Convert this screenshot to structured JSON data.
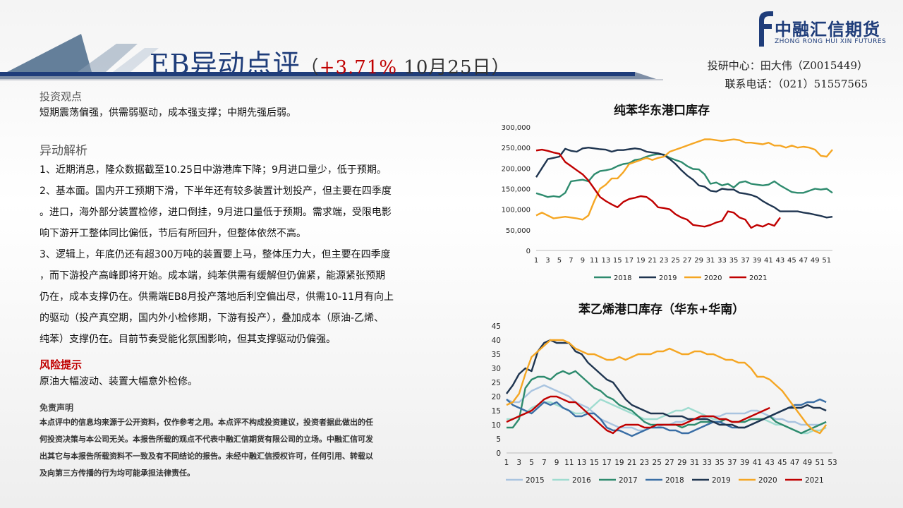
{
  "header": {
    "title_main": "EB异动点评",
    "title_open": "（",
    "title_pct": "+3.71%",
    "title_date": " 10月25日）",
    "logo_cn": "中融汇信期货",
    "logo_en": "ZHONG RONG HUI XIN FUTURES",
    "researcher": "投研中心：田大伟（Z0015449）",
    "phone": "联系电话：（021）51557565",
    "brand_color": "#1f3d7a",
    "accent_color": "#c00000"
  },
  "content": {
    "view_title": "投资观点",
    "view_text": "短期震荡偏强，供需弱驱动，成本强支撑；中期先强后弱。",
    "analysis_title": "异动解析",
    "analysis_lines": [
      "1、近期消息，隆众数据截至10.25日中游港库下降；9月进口量少，低于预期。",
      "2、基本面。国内开工预期下滑，下半年还有较多装置计划投产，但主要在四季度",
      "。进口，海外部分装置检修，进口倒挂，9月进口量低于预期。需求端，受限电影",
      "响下游开工整体同比偏低，节后有所回升，但整体依然不高。",
      "3、逻辑上，年底仍还有超300万吨的装置要上马，整体压力大，但主要在四季度",
      "，而下游投产高峰即将开始。成本端，纯苯供需有缓解但仍偏紧，能源紧张预期",
      "仍在，成本支撑仍在。供需端EB8月投产落地后利空偏出尽，供需10-11月有向上",
      "的驱动（投产真空期，国内外小检修期，下游有投产），叠加成本（原油-乙烯、",
      "纯苯）支撑仍在。目前节奏受能化氛围影响，但其支撑驱动仍偏强。"
    ],
    "risk_title": "风险提示",
    "risk_text": "原油大幅波动、装置大幅意外检修。",
    "disclaimer_title": "免责声明",
    "disclaimer_lines": [
      "本点评中的信息均来源于公开资料，仅作参考之用。本点评不构成投资建议，投资者据此做出的任",
      "何投资决策与本公司无关。本报告所载的观点不代表中融汇信期货有限公司的立场。中融汇信可发",
      "出其它与本报告所载资料不一致及有不同结论的报告。未经中融汇信授权许可，任何引用、转载以",
      "及向第三方传播的行为均可能承担法律责任。"
    ]
  },
  "chart_data": [
    {
      "type": "line",
      "title": "纯苯华东港口库存",
      "xlabel": "",
      "ylabel": "",
      "ylim": [
        0,
        300000
      ],
      "yticks": [
        0,
        50000,
        100000,
        150000,
        200000,
        250000,
        300000
      ],
      "ytick_labels": [
        "0",
        "50,000",
        "100,000",
        "150,000",
        "200,000",
        "250,000",
        "300,000"
      ],
      "xticks": [
        1,
        3,
        5,
        7,
        9,
        11,
        13,
        15,
        17,
        19,
        21,
        23,
        25,
        27,
        29,
        31,
        33,
        35,
        37,
        39,
        41,
        43,
        45,
        47,
        49,
        51
      ],
      "x_range": [
        1,
        52
      ],
      "legend_position": "bottom",
      "grid": false,
      "series": [
        {
          "name": "2018",
          "color": "#2e8b6e",
          "x_start": 1,
          "values": [
            139000,
            135000,
            130000,
            132000,
            130000,
            140000,
            168000,
            170000,
            172000,
            168000,
            185000,
            193000,
            195000,
            198000,
            205000,
            210000,
            212000,
            220000,
            222000,
            228000,
            232000,
            234000,
            233000,
            225000,
            220000,
            215000,
            205000,
            198000,
            197000,
            185000,
            162000,
            165000,
            158000,
            162000,
            153000,
            165000,
            168000,
            162000,
            160000,
            158000,
            160000,
            168000,
            158000,
            150000,
            142000,
            140000,
            140000,
            145000,
            150000,
            148000,
            150000,
            140000
          ]
        },
        {
          "name": "2019",
          "color": "#1f3550",
          "x_start": 1,
          "values": [
            178000,
            200000,
            222000,
            225000,
            228000,
            247000,
            242000,
            240000,
            248000,
            250000,
            248000,
            246000,
            245000,
            240000,
            244000,
            244000,
            246000,
            248000,
            246000,
            240000,
            238000,
            236000,
            232000,
            222000,
            210000,
            195000,
            182000,
            172000,
            158000,
            155000,
            145000,
            143000,
            150000,
            148000,
            148000,
            140000,
            138000,
            135000,
            130000,
            120000,
            112000,
            105000,
            95000,
            95000,
            95000,
            95000,
            92000,
            90000,
            87000,
            84000,
            80000,
            82000
          ]
        },
        {
          "name": "2020",
          "color": "#f5a623",
          "x_start": 1,
          "values": [
            85000,
            92000,
            85000,
            78000,
            80000,
            82000,
            80000,
            78000,
            75000,
            85000,
            120000,
            150000,
            160000,
            175000,
            175000,
            190000,
            210000,
            215000,
            220000,
            225000,
            220000,
            225000,
            228000,
            240000,
            245000,
            250000,
            255000,
            260000,
            265000,
            270000,
            270000,
            268000,
            266000,
            268000,
            270000,
            268000,
            262000,
            262000,
            260000,
            258000,
            262000,
            255000,
            255000,
            250000,
            255000,
            250000,
            252000,
            250000,
            245000,
            230000,
            228000,
            245000
          ]
        },
        {
          "name": "2021",
          "color": "#c00000",
          "x_start": 1,
          "values": [
            243000,
            245000,
            242000,
            238000,
            235000,
            215000,
            205000,
            195000,
            185000,
            170000,
            150000,
            130000,
            120000,
            112000,
            105000,
            118000,
            125000,
            128000,
            132000,
            130000,
            120000,
            105000,
            103000,
            100000,
            88000,
            80000,
            75000,
            62000,
            60000,
            58000,
            62000,
            68000,
            72000,
            95000,
            92000,
            80000,
            75000,
            55000,
            62000,
            58000,
            65000,
            60000,
            80000
          ]
        }
      ]
    },
    {
      "type": "line",
      "title": "苯乙烯港口库存（华东+华南）",
      "xlabel": "",
      "ylabel": "",
      "ylim": [
        0,
        45
      ],
      "yticks": [
        0,
        5,
        10,
        15,
        20,
        25,
        30,
        35,
        40,
        45
      ],
      "xticks": [
        1,
        3,
        5,
        7,
        9,
        11,
        13,
        15,
        17,
        19,
        21,
        23,
        25,
        27,
        29,
        31,
        33,
        35,
        37,
        39,
        41,
        43,
        45,
        47,
        49,
        51,
        53
      ],
      "x_range": [
        1,
        53
      ],
      "legend_position": "bottom",
      "grid": false,
      "series": [
        {
          "name": "2015",
          "color": "#a9c4e0",
          "x_start": 1,
          "values": [
            19,
            18,
            18,
            20,
            22,
            23,
            24,
            23,
            22,
            21,
            20,
            18,
            17,
            16,
            14,
            12,
            11,
            10,
            9,
            9,
            9,
            8,
            8,
            9,
            9,
            10,
            10,
            11,
            11,
            12,
            12,
            12,
            13,
            13,
            13,
            14,
            14,
            14,
            14,
            15,
            15,
            14,
            13,
            12,
            12,
            11,
            11,
            10,
            10,
            10,
            10,
            11
          ]
        },
        {
          "name": "2016",
          "color": "#9fdcd0",
          "x_start": 1,
          "values": [
            12,
            12,
            13,
            14,
            16,
            17,
            18,
            18,
            17,
            16,
            15,
            14,
            14,
            15,
            17,
            19,
            18,
            17,
            16,
            15,
            14,
            13,
            12,
            12,
            12,
            13,
            14,
            15,
            15,
            16,
            15,
            14,
            13,
            12,
            12,
            12,
            11,
            11,
            11,
            12,
            12,
            12,
            11,
            10,
            10,
            9,
            8,
            7,
            7,
            8,
            8,
            9
          ]
        },
        {
          "name": "2017",
          "color": "#2e8b6e",
          "x_start": 1,
          "values": [
            9,
            9,
            12,
            23,
            26,
            27,
            27,
            26,
            28,
            29,
            28,
            29,
            27,
            25,
            23,
            22,
            20,
            19,
            17,
            16,
            15,
            13,
            11,
            10,
            10,
            10,
            10,
            10,
            9,
            10,
            10,
            11,
            11,
            11,
            11,
            12,
            11,
            11,
            11,
            12,
            12,
            12,
            13,
            11,
            10,
            9,
            8,
            7,
            8,
            9,
            10,
            11
          ]
        },
        {
          "name": "2018",
          "color": "#3a6ea5",
          "x_start": 1,
          "values": [
            19,
            17,
            16,
            15,
            14,
            16,
            18,
            17,
            18,
            16,
            15,
            13,
            13,
            14,
            14,
            12,
            9,
            8,
            8,
            7,
            6,
            7,
            8,
            9,
            9,
            9,
            8,
            8,
            7,
            7,
            8,
            9,
            10,
            11,
            11,
            10,
            9,
            9,
            9,
            10,
            11,
            12,
            13,
            14,
            15,
            16,
            17,
            17,
            18,
            18,
            19,
            18
          ]
        },
        {
          "name": "2019",
          "color": "#1f3550",
          "x_start": 1,
          "values": [
            21,
            24,
            28,
            30,
            29,
            36,
            39,
            40,
            39,
            39,
            39,
            36,
            35,
            32,
            30,
            28,
            26,
            25,
            22,
            19,
            17,
            16,
            15,
            14,
            14,
            14,
            13,
            13,
            13,
            12,
            12,
            12,
            12,
            11,
            10,
            10,
            10,
            9,
            9,
            10,
            11,
            12,
            13,
            14,
            15,
            16,
            16,
            16,
            17,
            16,
            16,
            15
          ]
        },
        {
          "name": "2020",
          "color": "#f5a623",
          "x_start": 1,
          "values": [
            17,
            18,
            21,
            28,
            34,
            36,
            38,
            40,
            40,
            40,
            39,
            37,
            36,
            35,
            35,
            34,
            33,
            33,
            34,
            33,
            34,
            35,
            35,
            35,
            36,
            36,
            37,
            36,
            35,
            35,
            36,
            36,
            35,
            35,
            34,
            33,
            33,
            32,
            32,
            30,
            27,
            27,
            26,
            24,
            22,
            19,
            16,
            13,
            10,
            8,
            7,
            10
          ]
        },
        {
          "name": "2021",
          "color": "#c00000",
          "x_start": 1,
          "values": [
            11,
            12,
            13,
            14,
            15,
            17,
            19,
            20,
            20,
            19,
            18,
            18,
            16,
            14,
            12,
            10,
            8,
            7,
            9,
            10,
            10,
            10,
            9,
            9,
            10,
            10,
            10,
            10,
            10,
            11,
            12,
            13,
            13,
            13,
            12,
            12,
            11,
            11,
            12,
            13,
            14,
            15,
            16
          ]
        }
      ]
    }
  ]
}
